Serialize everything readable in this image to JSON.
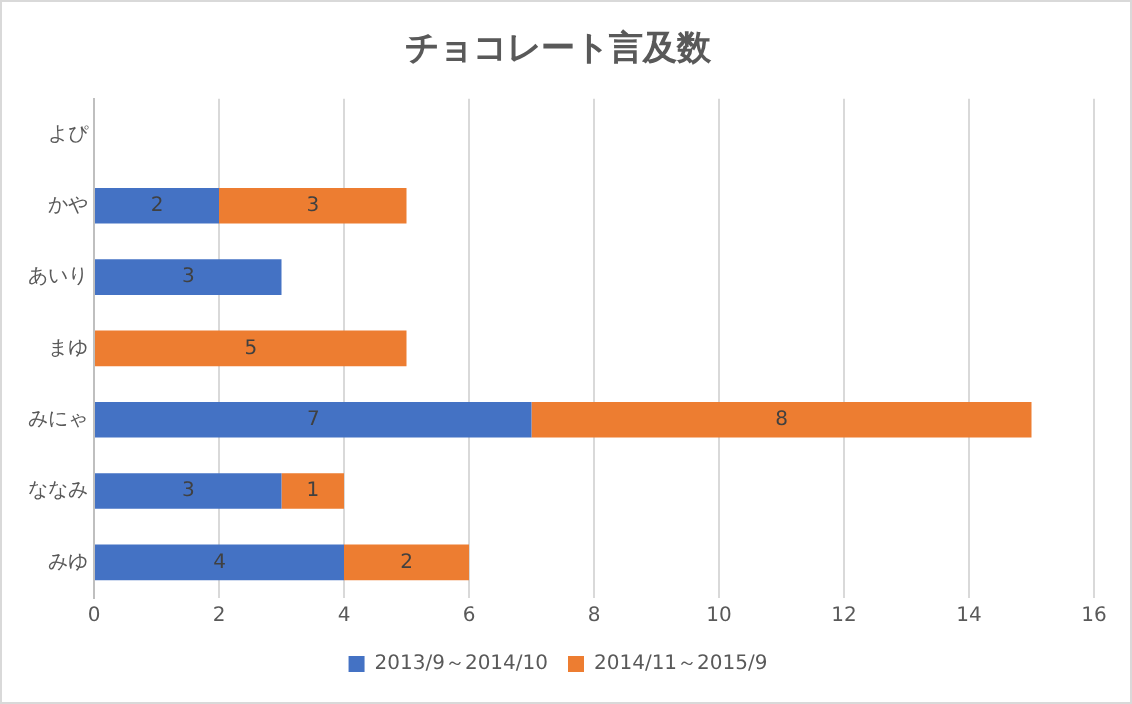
{
  "chart_data": {
    "type": "bar",
    "title": "チョコレート言及数",
    "orientation": "horizontal",
    "stacked": true,
    "categories": [
      "よぴ",
      "かや",
      "あいり",
      "まゆ",
      "みにゃ",
      "ななみ",
      "みゆ"
    ],
    "series": [
      {
        "name": "2013/9～2014/10",
        "color": "#4472c4",
        "values": [
          null,
          2,
          3,
          null,
          7,
          3,
          4
        ]
      },
      {
        "name": "2014/11～2015/9",
        "color": "#ed7d31",
        "values": [
          null,
          3,
          null,
          5,
          8,
          1,
          2
        ]
      }
    ],
    "xlim": [
      0,
      16
    ],
    "xticks": [
      0,
      2,
      4,
      6,
      8,
      10,
      12,
      14,
      16
    ],
    "grid": "x",
    "legend": "bottom",
    "data_labels": true
  }
}
